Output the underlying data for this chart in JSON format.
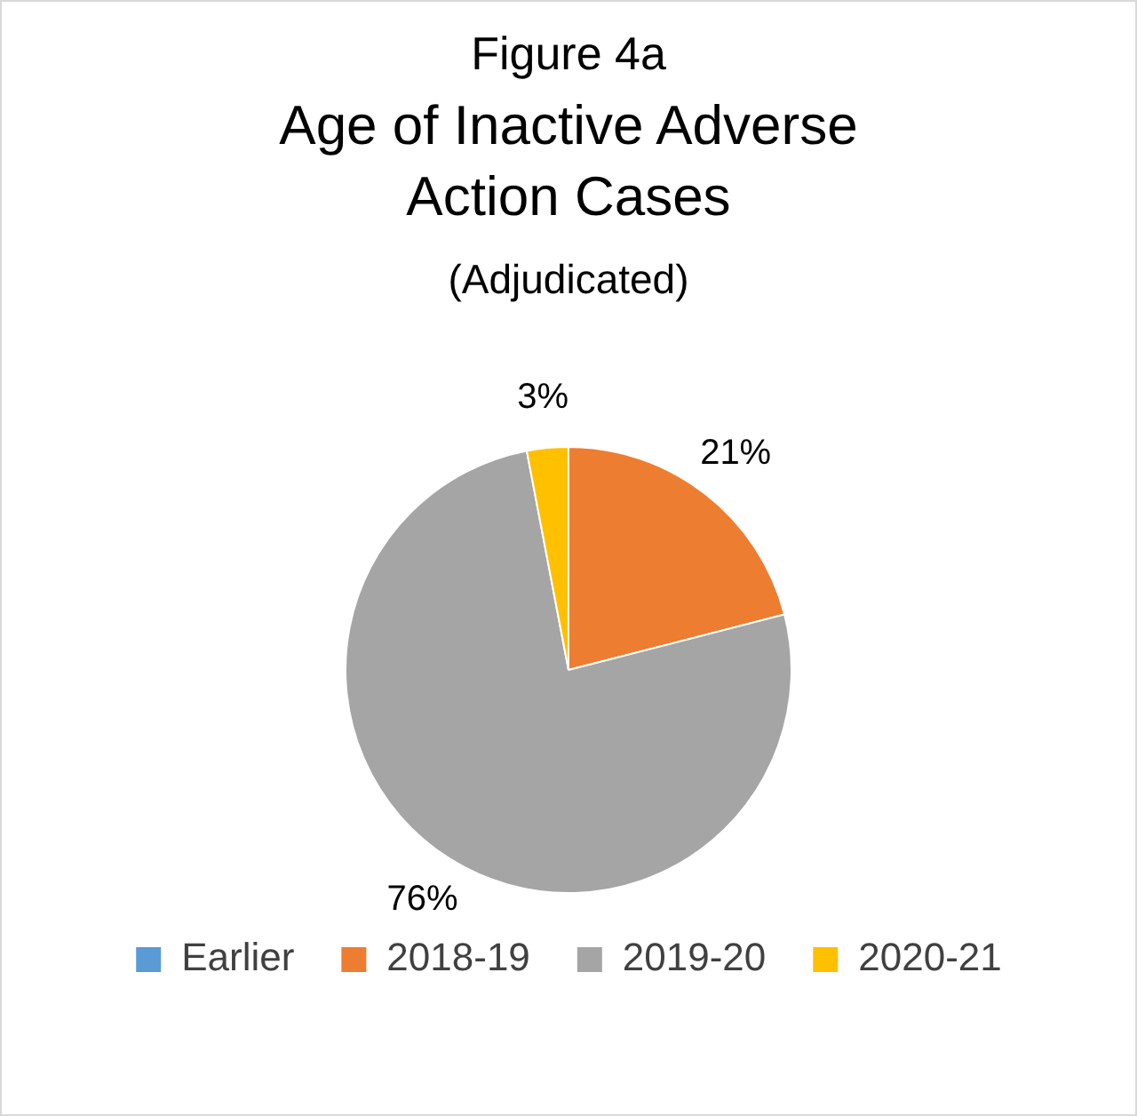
{
  "chart_data": {
    "type": "pie",
    "title": "Age of Inactive Adverse Action Cases",
    "subtitle": "(Adjudicated)",
    "annotations": [
      "Figure 4a"
    ],
    "categories": [
      "Earlier",
      "2018-19",
      "2019-20",
      "2020-21"
    ],
    "values": [
      0,
      21,
      76,
      3
    ],
    "colors": [
      "#5b9bd5",
      "#ed7d31",
      "#a5a5a5",
      "#ffc000"
    ],
    "value_labels": [
      null,
      "21%",
      "76%",
      "3%"
    ],
    "legend": "bottom"
  }
}
